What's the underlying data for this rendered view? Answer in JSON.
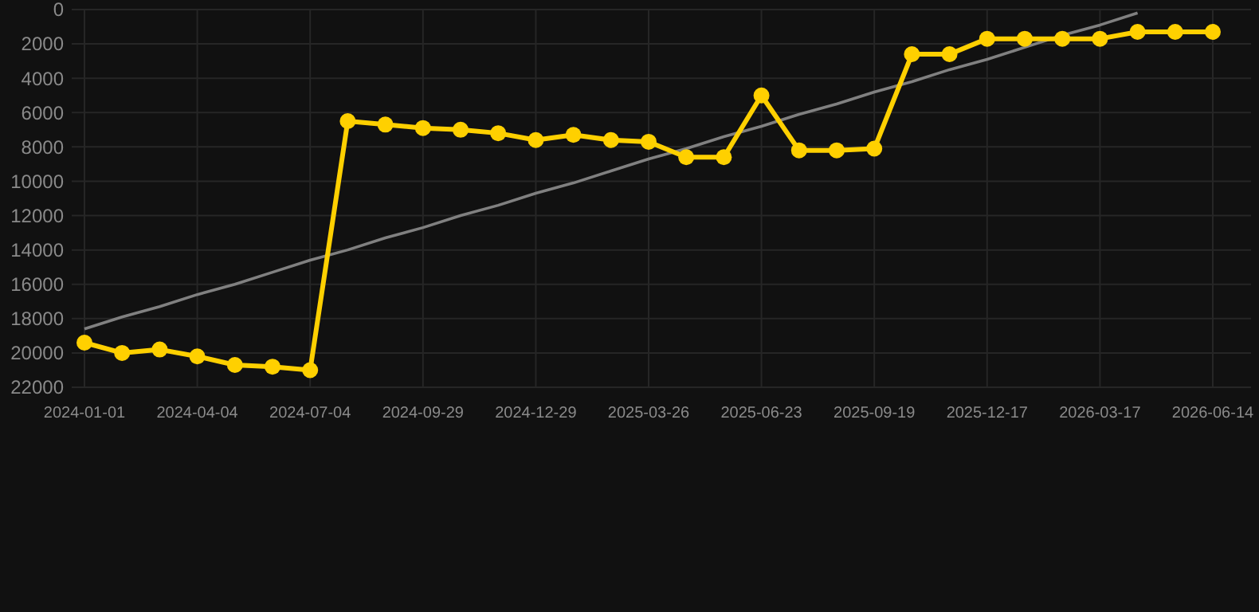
{
  "chart_data": {
    "type": "line",
    "categories": [
      "2024-01-01",
      null,
      null,
      "2024-04-04",
      null,
      null,
      "2024-07-04",
      null,
      null,
      "2024-09-29",
      null,
      null,
      "2024-12-29",
      null,
      null,
      "2025-03-26",
      null,
      null,
      "2025-06-23",
      null,
      null,
      "2025-09-19",
      null,
      null,
      "2025-12-17",
      null,
      null,
      "2026-03-17",
      null,
      null,
      "2026-06-14"
    ],
    "series": [
      {
        "color": "#ffd000",
        "marker": "circle",
        "values": [
          19400,
          20000,
          19800,
          20200,
          20700,
          20800,
          21000,
          6500,
          6700,
          6900,
          7000,
          7200,
          7600,
          7300,
          7600,
          7700,
          8600,
          8600,
          5000,
          8200,
          8200,
          8100,
          2600,
          2600,
          1700,
          1700,
          1700,
          1700,
          1300,
          1300,
          1300
        ]
      },
      {
        "color": "#808080",
        "marker": "none",
        "values": [
          18600,
          17900,
          17300,
          16600,
          16000,
          15300,
          14600,
          14000,
          13300,
          12700,
          12000,
          11400,
          10700,
          10100,
          9400,
          8700,
          8100,
          7400,
          6800,
          6100,
          5500,
          4800,
          4200,
          3500,
          2900,
          2200,
          1500,
          900,
          200,
          null,
          null
        ]
      }
    ],
    "ylim": [
      22000,
      0
    ],
    "yticks": [
      0,
      2000,
      4000,
      6000,
      8000,
      10000,
      12000,
      14000,
      16000,
      18000,
      20000,
      22000
    ],
    "grid": true
  }
}
